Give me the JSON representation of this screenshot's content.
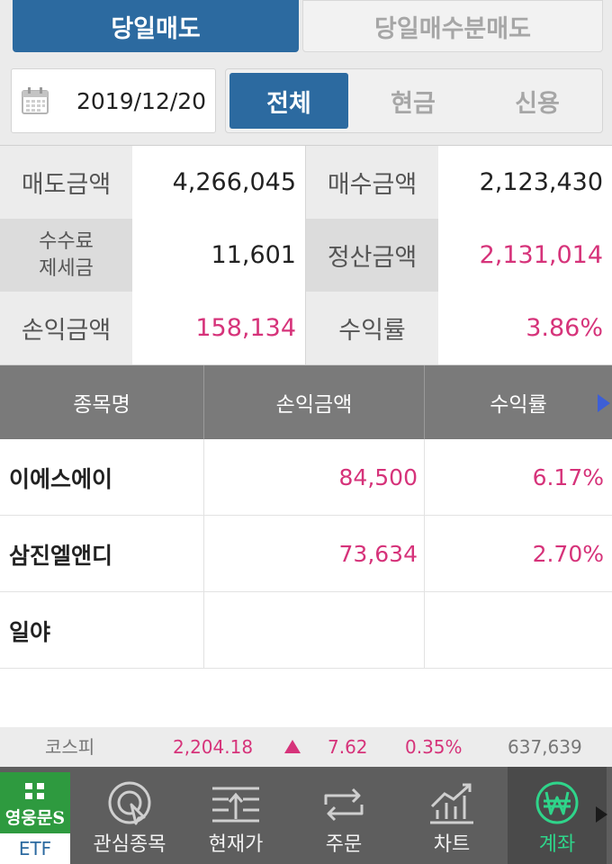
{
  "top_tabs": {
    "active": "당일매도",
    "inactive": "당일매수분매도"
  },
  "filter": {
    "date": "2019/12/20",
    "segments": [
      "전체",
      "현금",
      "신용"
    ],
    "selected": "전체"
  },
  "summary": {
    "sell_amount_label": "매도금액",
    "sell_amount": "4,266,045",
    "buy_amount_label": "매수금액",
    "buy_amount": "2,123,430",
    "fee_label_1": "수수료",
    "fee_label_2": "제세금",
    "fee": "11,601",
    "settle_label": "정산금액",
    "settle": "2,131,014",
    "pl_label": "손익금액",
    "pl": "158,134",
    "rate_label": "수익률",
    "rate": "3.86%"
  },
  "table": {
    "headers": [
      "종목명",
      "손익금액",
      "수익률"
    ],
    "rows": [
      {
        "name": "이에스에이",
        "pl": "84,500",
        "rate": "6.17%"
      },
      {
        "name": "삼진엘앤디",
        "pl": "73,634",
        "rate": "2.70%"
      },
      {
        "name": "일야",
        "pl": "",
        "rate": ""
      }
    ]
  },
  "ticker": {
    "index": "코스피",
    "value": "2,204.18",
    "change": "7.62",
    "pct": "0.35%",
    "volume": "637,639",
    "up_color": "#d6337a"
  },
  "nav": {
    "etf_logo": "영웅문S",
    "etf_label": "ETF",
    "items": [
      "관심종목",
      "현재가",
      "주문",
      "차트",
      "계좌"
    ],
    "active": "계좌",
    "active_color": "#2fd48a"
  },
  "colors": {
    "accent": "#2c6aa0",
    "positive": "#d6337a"
  }
}
